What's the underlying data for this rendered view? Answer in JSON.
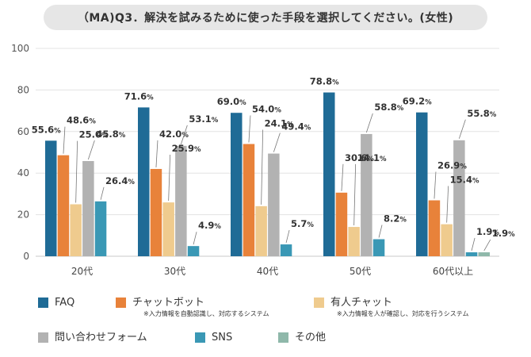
{
  "colors": {
    "faq": "#1f6b96",
    "chatbot": "#e8823a",
    "manned_chat": "#efcb8e",
    "inquiry_form": "#b2b2b2",
    "sns": "#3a98b5",
    "other": "#8fb8aa"
  },
  "chart_data": {
    "type": "bar",
    "title": "（MA)Q3．解決を試みるために使った手段を選択してください。(女性)",
    "categories": [
      "20代",
      "30代",
      "40代",
      "50代",
      "60代以上"
    ],
    "ylim": [
      0,
      100
    ],
    "yticks": [
      0,
      20,
      40,
      60,
      80,
      100
    ],
    "grid": true,
    "xlabel": "",
    "ylabel": "",
    "series": [
      {
        "key": "faq",
        "name": "FAQ",
        "note": "",
        "values": [
          55.6,
          71.6,
          69.0,
          78.8,
          69.2
        ],
        "labels": [
          "55.6%",
          "71.6%",
          "69.0%",
          "78.8%",
          "69.2%"
        ]
      },
      {
        "key": "chatbot",
        "name": "チャットボット",
        "note": "※入力情報を自動認識し、対応するシステム",
        "values": [
          48.6,
          42.0,
          54.0,
          30.6,
          26.9
        ],
        "labels": [
          "48.6%",
          "42.0%",
          "54.0%",
          "30.6%",
          "26.9%"
        ]
      },
      {
        "key": "manned_chat",
        "name": "有人チャット",
        "note": "※入力情報を人が確認し、対応を行うシステム",
        "values": [
          25.0,
          25.9,
          24.1,
          14.1,
          15.4
        ],
        "labels": [
          "25.0%",
          "25.9%",
          "24.1%",
          "14.1%",
          "15.4%"
        ]
      },
      {
        "key": "inquiry_form",
        "name": "問い合わせフォーム",
        "note": "",
        "values": [
          45.8,
          53.1,
          49.4,
          58.8,
          55.8
        ],
        "labels": [
          "45.8%",
          "53.1%",
          "49.4%",
          "58.8%",
          "55.8%"
        ]
      },
      {
        "key": "sns",
        "name": "SNS",
        "note": "",
        "values": [
          26.4,
          4.9,
          5.7,
          8.2,
          1.9
        ],
        "labels": [
          "26.4%",
          "4.9%",
          "5.7%",
          "8.2%",
          "1.9%"
        ]
      },
      {
        "key": "other",
        "name": "その他",
        "note": "",
        "values": [
          null,
          null,
          null,
          null,
          1.9
        ],
        "labels": [
          null,
          null,
          null,
          null,
          "1.9%"
        ]
      }
    ]
  }
}
